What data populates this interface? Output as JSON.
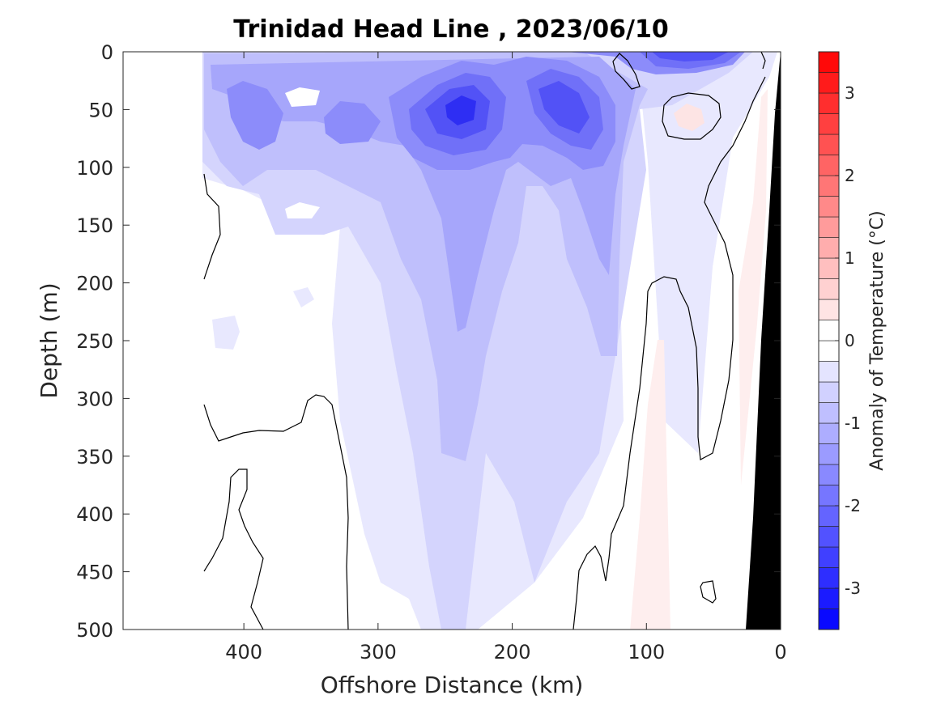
{
  "chart_data": {
    "type": "heatmap",
    "title": "Trinidad Head Line , 2023/06/10",
    "xlabel": "Offshore Distance (km)",
    "ylabel": "Depth (m)",
    "colorbar_label": "Anomaly of Temperature (°C)",
    "xlim": [
      490,
      0
    ],
    "ylim": [
      500,
      0
    ],
    "x_ticks": [
      400,
      300,
      200,
      100,
      0
    ],
    "y_ticks": [
      0,
      50,
      100,
      150,
      200,
      250,
      300,
      350,
      400,
      450,
      500
    ],
    "colorbar_range": [
      -3.5,
      3.5
    ],
    "colorbar_ticks": [
      3,
      2,
      1,
      0,
      -1,
      -2,
      -3
    ],
    "colorbar_levels": 28,
    "contour_level": 0,
    "colormap": {
      "negative": "#0000ff",
      "zero": "#ffffff",
      "positive": "#ff0000"
    },
    "bathymetry_color": "#000000",
    "grid": false,
    "features": [
      {
        "name": "coldest-core-1",
        "x": 240,
        "y": 50,
        "value": -2.5
      },
      {
        "name": "coldest-core-2",
        "x": 160,
        "y": 40,
        "value": -2.2
      },
      {
        "name": "surface-cold",
        "x": 80,
        "y": 5,
        "value": -2.5
      },
      {
        "name": "warm-spot",
        "x": 70,
        "y": 55,
        "value": 0.5
      },
      {
        "name": "warm-slope-band",
        "x": 90,
        "y": 400,
        "value": 0.3
      }
    ]
  }
}
